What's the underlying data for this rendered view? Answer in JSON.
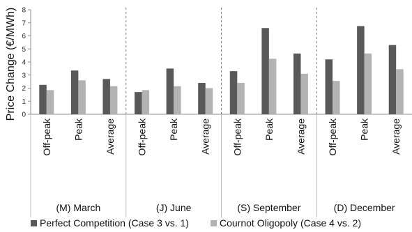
{
  "chart_data": {
    "type": "bar",
    "ylabel": "Price Change (€/MWh)",
    "ylim": [
      0,
      8
    ],
    "yticks": [
      "0",
      "1",
      "2",
      "3",
      "4",
      "5",
      "6",
      "7",
      "8"
    ],
    "categories": [
      "Off-peak",
      "Peak",
      "Average",
      "Off-peak",
      "Peak",
      "Average",
      "Off-peak",
      "Peak",
      "Average",
      "Off-peak",
      "Peak",
      "Average"
    ],
    "groups": [
      "(M) March",
      "(J) June",
      "(S) September",
      "(D) December"
    ],
    "series": [
      {
        "name": "Perfect Competition (Case 3 vs. 1)",
        "color": "#595959",
        "values": [
          2.25,
          3.35,
          2.7,
          1.7,
          3.5,
          2.4,
          3.3,
          6.6,
          4.65,
          4.2,
          6.75,
          5.3
        ]
      },
      {
        "name": "Cournot Oligopoly (Case 4 vs. 2)",
        "color": "#b3b3b3",
        "values": [
          1.85,
          2.6,
          2.15,
          1.85,
          2.15,
          2.0,
          2.4,
          4.25,
          3.1,
          2.55,
          4.65,
          3.45
        ]
      }
    ],
    "legend_position": "bottom",
    "grid": false
  }
}
